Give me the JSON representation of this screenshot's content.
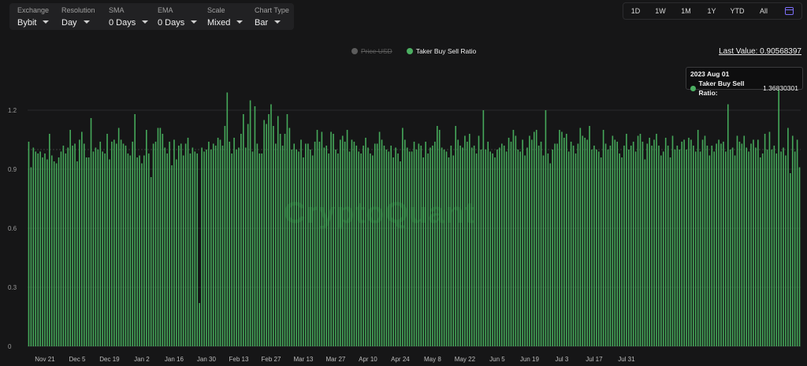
{
  "controls": [
    {
      "label": "Exchange",
      "value": "Bybit"
    },
    {
      "label": "Resolution",
      "value": "Day"
    },
    {
      "label": "SMA",
      "value": "0 Days"
    },
    {
      "label": "EMA",
      "value": "0 Days"
    },
    {
      "label": "Scale",
      "value": "Mixed"
    },
    {
      "label": "Chart Type",
      "value": "Bar"
    }
  ],
  "range_buttons": [
    "1D",
    "1W",
    "1M",
    "1Y",
    "YTD",
    "All"
  ],
  "legend": {
    "price": "Price USD",
    "ratio": "Taker Buy Sell Ratio"
  },
  "last_value": "Last Value: 0.90568397",
  "tooltip": {
    "date": "2023 Aug 01",
    "series": "Taker Buy Sell Ratio:",
    "value": "1.36830301"
  },
  "watermark": "CryptoQuant",
  "colors": {
    "bar": "#45a85a",
    "bar_top": "#5fc474",
    "accent": "#7b6ef6",
    "grid": "#2a2a2c"
  },
  "chart_data": {
    "type": "bar",
    "ylim": [
      0,
      1.4
    ],
    "yticks": [
      0,
      0.3,
      0.6,
      0.9,
      1.2
    ],
    "ytick_labels": [
      "0",
      "0.3",
      "0.6",
      "0.9",
      "1.2"
    ],
    "xtick_labels": [
      "Nov 21",
      "Dec 5",
      "Dec 19",
      "Jan 2",
      "Jan 16",
      "Jan 30",
      "Feb 13",
      "Feb 27",
      "Mar 13",
      "Mar 27",
      "Apr 10",
      "Apr 24",
      "May 8",
      "May 22",
      "Jun 5",
      "Jun 19",
      "Jul 3",
      "Jul 17",
      "Jul 31"
    ],
    "xtick_index": [
      7,
      21,
      35,
      49,
      63,
      77,
      91,
      105,
      119,
      133,
      147,
      161,
      175,
      189,
      203,
      217,
      231,
      245,
      259
    ],
    "series": [
      {
        "name": "Taker Buy Sell Ratio",
        "values": [
          1.04,
          0.91,
          1.01,
          0.99,
          0.98,
          0.99,
          0.96,
          0.98,
          0.95,
          1.08,
          0.97,
          0.94,
          0.93,
          0.96,
          0.99,
          1.02,
          0.98,
          1.01,
          1.1,
          1.02,
          1.03,
          0.94,
          1.05,
          1.09,
          1.03,
          0.96,
          0.96,
          1.16,
          0.99,
          1.01,
          1.0,
          1.04,
          0.99,
          0.98,
          1.08,
          0.95,
          1.04,
          1.05,
          1.03,
          1.11,
          1.05,
          1.03,
          1.02,
          0.98,
          0.97,
          1.04,
          1.18,
          0.96,
          0.97,
          0.93,
          0.97,
          1.1,
          0.98,
          0.86,
          1.03,
          1.04,
          1.11,
          1.11,
          1.08,
          1.01,
          0.98,
          1.04,
          0.92,
          1.05,
          0.95,
          1.02,
          1.03,
          0.97,
          1.03,
          1.06,
          0.98,
          1.01,
          0.99,
          0.98,
          0.22,
          1.01,
          0.99,
          1.0,
          1.04,
          1.0,
          1.03,
          1.02,
          1.06,
          1.05,
          1.02,
          1.12,
          1.29,
          1.04,
          0.98,
          1.06,
          1.0,
          1.01,
          1.08,
          1.18,
          1.01,
          1.13,
          1.25,
          0.99,
          1.22,
          1.03,
          0.98,
          0.98,
          1.15,
          1.13,
          1.18,
          1.23,
          1.12,
          1.03,
          1.17,
          1.08,
          1.02,
          1.08,
          1.18,
          1.11,
          1.0,
          1.03,
          1.0,
          0.99,
          1.05,
          0.96,
          1.03,
          1.03,
          1.0,
          0.97,
          1.04,
          1.1,
          1.04,
          1.09,
          1.01,
          1.02,
          0.98,
          1.09,
          1.08,
          1.0,
          0.98,
          1.05,
          1.07,
          1.04,
          1.1,
          0.99,
          1.05,
          1.04,
          1.02,
          0.99,
          0.98,
          1.02,
          1.06,
          1.01,
          0.98,
          0.97,
          1.03,
          1.03,
          1.09,
          1.05,
          1.02,
          1.0,
          0.99,
          1.02,
          0.96,
          1.01,
          0.98,
          0.94,
          1.11,
          1.05,
          1.01,
          0.99,
          0.99,
          1.04,
          1.0,
          1.03,
          1.02,
          0.96,
          1.04,
          0.98,
          1.01,
          1.02,
          1.04,
          1.12,
          1.1,
          1.01,
          1.0,
          0.99,
          0.96,
          1.02,
          0.97,
          1.12,
          1.05,
          1.02,
          1.01,
          1.07,
          1.04,
          1.08,
          1.01,
          1.02,
          0.98,
          1.07,
          1.0,
          1.2,
          1.0,
          1.04,
          0.99,
          0.98,
          0.96,
          1.0,
          1.01,
          1.03,
          1.02,
          0.99,
          1.06,
          1.04,
          1.1,
          1.07,
          1.0,
          0.99,
          1.05,
          0.97,
          1.01,
          1.07,
          1.05,
          1.09,
          1.1,
          1.02,
          1.04,
          0.97,
          1.2,
          0.98,
          0.93,
          1.0,
          1.03,
          1.03,
          1.1,
          1.09,
          1.06,
          1.08,
          0.99,
          1.04,
          1.02,
          0.98,
          1.03,
          1.11,
          1.07,
          1.06,
          1.05,
          1.12,
          1.0,
          1.02,
          1.0,
          0.99,
          0.96,
          1.1,
          1.03,
          1.0,
          1.02,
          1.07,
          1.05,
          1.04,
          0.98,
          0.96,
          1.02,
          1.08,
          1.0,
          1.02,
          1.04,
          0.99,
          1.07,
          1.08,
          1.04,
          0.95,
          1.03,
          1.06,
          1.02,
          1.05,
          1.08,
          1.02,
          0.97,
          0.99,
          1.06,
          1.02,
          0.96,
          1.07,
          1.0,
          1.02,
          1.0,
          1.04,
          1.05,
          1.0,
          1.06,
          1.05,
          1.02,
          0.99,
          1.1,
          0.99,
          1.05,
          1.07,
          1.02,
          0.97,
          1.02,
          0.99,
          1.03,
          1.05,
          1.03,
          1.04,
          0.99,
          1.23,
          1.0,
          1.01,
          0.97,
          1.07,
          1.04,
          1.03,
          1.07,
          1.01,
          0.99,
          1.03,
          1.05,
          1.01,
          1.05,
          0.96,
          0.98,
          1.08,
          1.0,
          1.09,
          1.0,
          1.02,
          0.98,
          1.36,
          0.99,
          1.01,
          0.97,
          1.11,
          0.88,
          1.07,
          0.99,
          1.05,
          0.91
        ]
      }
    ]
  }
}
